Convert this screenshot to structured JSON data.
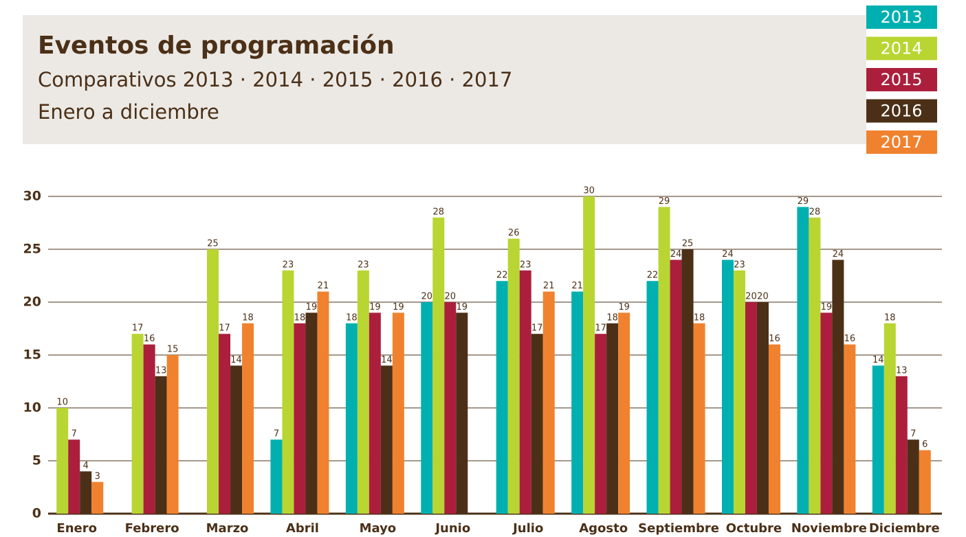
{
  "chart_data": {
    "type": "bar",
    "title": "Eventos de programación",
    "subtitle": "Comparativos 2013 · 2014 · 2015 · 2016 · 2017",
    "subtitle2": "Enero a diciembre",
    "categories": [
      "Enero",
      "Febrero",
      "Marzo",
      "Abril",
      "Mayo",
      "Junio",
      "Julio",
      "Agosto",
      "Septiembre",
      "Octubre",
      "Noviembre",
      "Diciembre"
    ],
    "series": [
      {
        "name": "2013",
        "color": "#00b0b0",
        "values": [
          null,
          null,
          null,
          7,
          18,
          20,
          22,
          21,
          22,
          24,
          29,
          14
        ]
      },
      {
        "name": "2014",
        "color": "#b9d532",
        "values": [
          10,
          17,
          25,
          23,
          23,
          28,
          26,
          30,
          29,
          23,
          28,
          18
        ]
      },
      {
        "name": "2015",
        "color": "#ab1f3d",
        "values": [
          7,
          16,
          17,
          18,
          19,
          20,
          23,
          17,
          24,
          20,
          19,
          13
        ]
      },
      {
        "name": "2016",
        "color": "#4b3017",
        "values": [
          4,
          13,
          14,
          19,
          14,
          19,
          17,
          18,
          25,
          20,
          24,
          7
        ]
      },
      {
        "name": "2017",
        "color": "#f0822f",
        "values": [
          3,
          15,
          18,
          21,
          19,
          null,
          21,
          19,
          18,
          16,
          16,
          6
        ]
      }
    ],
    "ylim": [
      0,
      30
    ],
    "yticks": [
      0,
      5,
      10,
      15,
      20,
      25,
      30
    ],
    "grid": true,
    "legend": "top-right"
  }
}
